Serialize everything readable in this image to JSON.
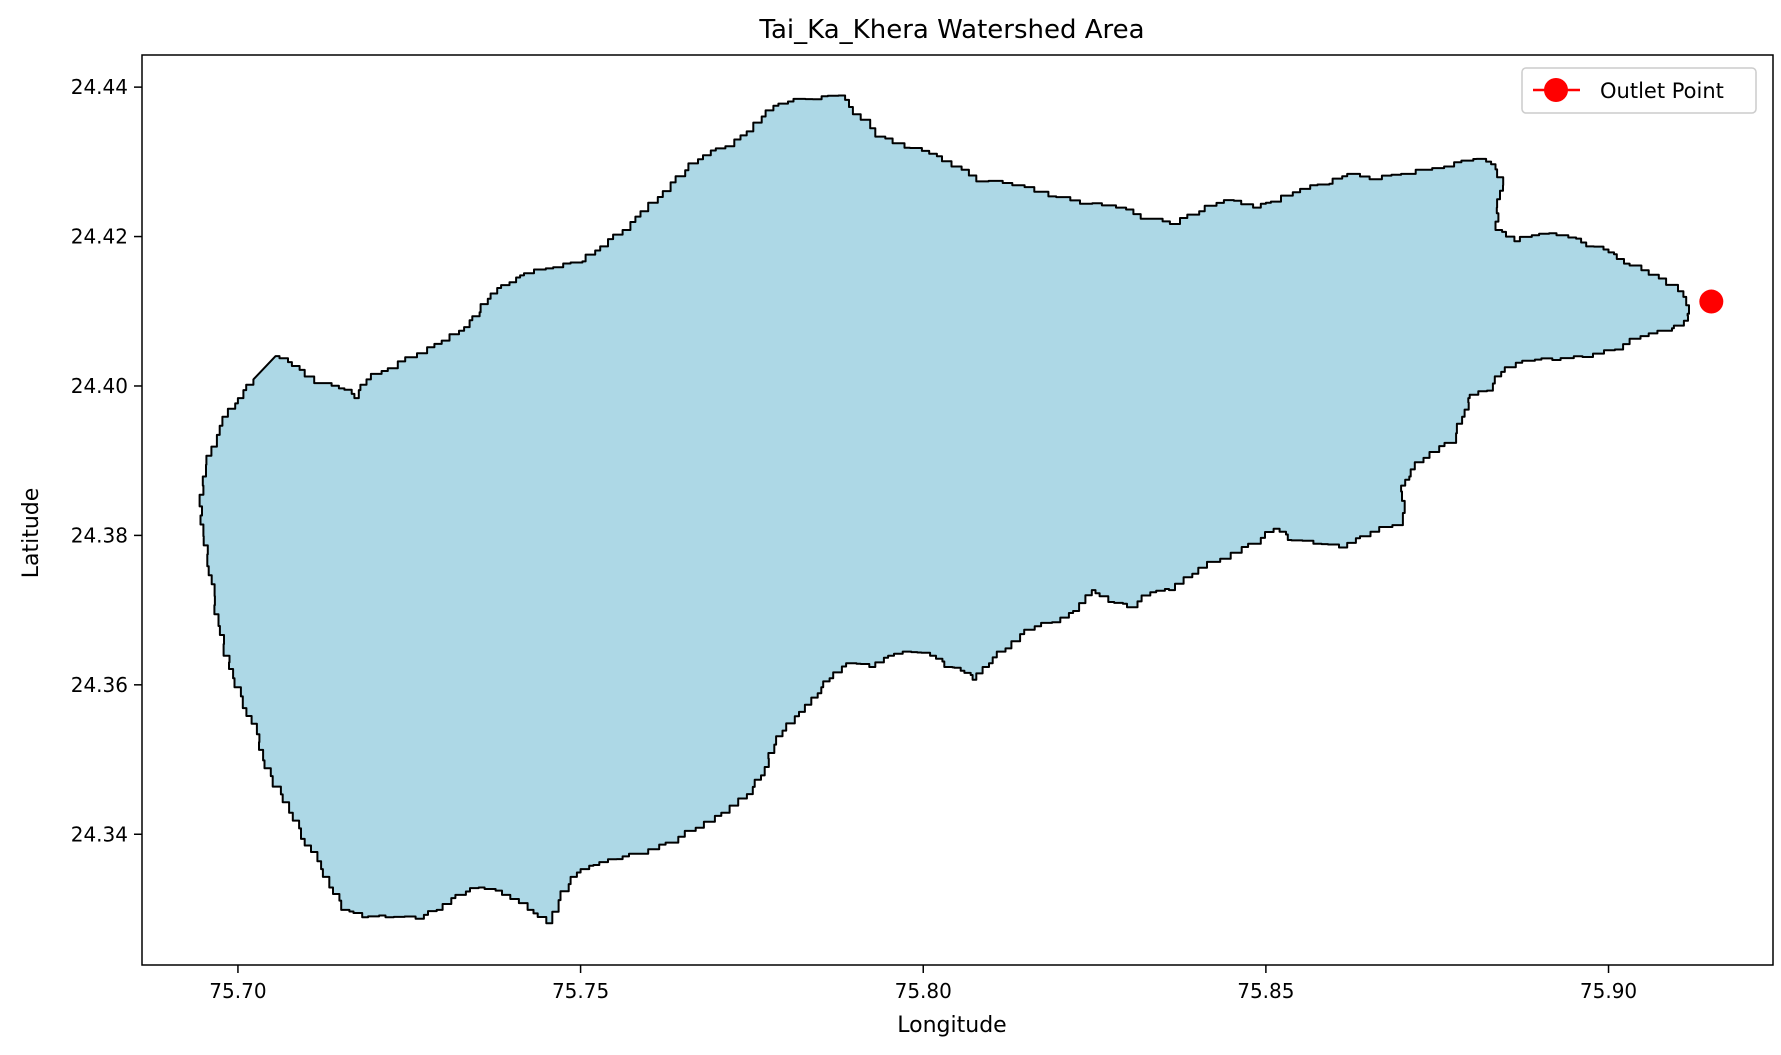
{
  "chart_data": {
    "type": "map",
    "title": "Tai_Ka_Khera Watershed Area",
    "xlabel": "Longitude",
    "ylabel": "Latitude",
    "xlim": [
      75.686,
      75.924
    ],
    "ylim": [
      24.3225,
      24.4443
    ],
    "x_ticks": [
      75.7,
      75.75,
      75.8,
      75.85,
      75.9
    ],
    "x_tick_labels": [
      "75.70",
      "75.75",
      "75.80",
      "75.85",
      "75.90"
    ],
    "y_ticks": [
      24.34,
      24.36,
      24.38,
      24.4,
      24.42,
      24.44
    ],
    "y_tick_labels": [
      "24.34",
      "24.36",
      "24.38",
      "24.40",
      "24.42",
      "24.44"
    ],
    "grid": false,
    "legend": {
      "position": "top-right",
      "entries": [
        "Outlet Point"
      ]
    },
    "watershed": {
      "fill": "#add8e6",
      "edge": "#000000",
      "boundary": [
        [
          75.7055,
          24.404
        ],
        [
          75.708,
          24.4028
        ],
        [
          75.711,
          24.4005
        ],
        [
          75.715,
          24.3998
        ],
        [
          75.717,
          24.3985
        ],
        [
          75.7185,
          24.401
        ],
        [
          75.722,
          24.4025
        ],
        [
          75.726,
          24.4045
        ],
        [
          75.73,
          24.4062
        ],
        [
          75.733,
          24.408
        ],
        [
          75.735,
          24.41
        ],
        [
          75.737,
          24.4125
        ],
        [
          75.7395,
          24.414
        ],
        [
          75.742,
          24.4152
        ],
        [
          75.746,
          24.416
        ],
        [
          75.75,
          24.4168
        ],
        [
          75.753,
          24.4188
        ],
        [
          75.756,
          24.421
        ],
        [
          75.759,
          24.4235
        ],
        [
          75.762,
          24.4262
        ],
        [
          75.765,
          24.429
        ],
        [
          75.768,
          24.431
        ],
        [
          75.771,
          24.4322
        ],
        [
          75.7745,
          24.4342
        ],
        [
          75.777,
          24.437
        ],
        [
          75.78,
          24.4382
        ],
        [
          75.784,
          24.4385
        ],
        [
          75.7875,
          24.439
        ],
        [
          75.79,
          24.4365
        ],
        [
          75.793,
          24.4335
        ],
        [
          75.797,
          24.432
        ],
        [
          75.801,
          24.4312
        ],
        [
          75.804,
          24.4295
        ],
        [
          75.808,
          24.4275
        ],
        [
          75.813,
          24.427
        ],
        [
          75.818,
          24.4255
        ],
        [
          75.823,
          24.4245
        ],
        [
          75.828,
          24.424
        ],
        [
          75.832,
          24.4225
        ],
        [
          75.836,
          24.4218
        ],
        [
          75.84,
          24.4235
        ],
        [
          75.844,
          24.425
        ],
        [
          75.848,
          24.424
        ],
        [
          75.851,
          24.4248
        ],
        [
          75.855,
          24.4265
        ],
        [
          75.859,
          24.4272
        ],
        [
          75.862,
          24.4285
        ],
        [
          75.865,
          24.4278
        ],
        [
          75.87,
          24.4285
        ],
        [
          75.876,
          24.4295
        ],
        [
          75.88,
          24.4305
        ],
        [
          75.883,
          24.4298
        ],
        [
          75.8845,
          24.427
        ],
        [
          75.884,
          24.424
        ],
        [
          75.8835,
          24.421
        ],
        [
          75.886,
          24.4195
        ],
        [
          75.89,
          24.4205
        ],
        [
          75.894,
          24.42
        ],
        [
          75.897,
          24.4188
        ],
        [
          75.9,
          24.418
        ],
        [
          75.902,
          24.4165
        ],
        [
          75.906,
          24.415
        ],
        [
          75.91,
          24.4128
        ],
        [
          75.912,
          24.4098
        ],
        [
          75.911,
          24.4082
        ],
        [
          75.909,
          24.4075
        ],
        [
          75.906,
          24.4068
        ],
        [
          75.902,
          24.405
        ],
        [
          75.898,
          24.404
        ],
        [
          75.893,
          24.4036
        ],
        [
          75.889,
          24.4035
        ],
        [
          75.885,
          24.402
        ],
        [
          75.883,
          24.3995
        ],
        [
          75.88,
          24.3985
        ],
        [
          75.879,
          24.396
        ],
        [
          75.8775,
          24.3925
        ],
        [
          75.874,
          24.3905
        ],
        [
          75.871,
          24.388
        ],
        [
          75.87,
          24.386
        ],
        [
          75.87,
          24.3815
        ],
        [
          75.865,
          24.38
        ],
        [
          75.862,
          24.3785
        ],
        [
          75.858,
          24.379
        ],
        [
          75.854,
          24.3795
        ],
        [
          75.852,
          24.381
        ],
        [
          75.849,
          24.379
        ],
        [
          75.845,
          24.377
        ],
        [
          75.84,
          24.375
        ],
        [
          75.837,
          24.3728
        ],
        [
          75.834,
          24.3725
        ],
        [
          75.831,
          24.3705
        ],
        [
          75.828,
          24.3712
        ],
        [
          75.825,
          24.3728
        ],
        [
          75.823,
          24.37
        ],
        [
          75.82,
          24.3685
        ],
        [
          75.816,
          24.3675
        ],
        [
          75.813,
          24.365
        ],
        [
          75.81,
          24.363
        ],
        [
          75.808,
          24.3608
        ],
        [
          75.806,
          24.362
        ],
        [
          75.804,
          24.3625
        ],
        [
          75.802,
          24.364
        ],
        [
          75.799,
          24.3645
        ],
        [
          75.796,
          24.364
        ],
        [
          75.793,
          24.3625
        ],
        [
          75.79,
          24.363
        ],
        [
          75.787,
          24.361
        ],
        [
          75.785,
          24.359
        ],
        [
          75.783,
          24.3565
        ],
        [
          75.78,
          24.354
        ],
        [
          75.778,
          24.351
        ],
        [
          75.777,
          24.348
        ],
        [
          75.775,
          24.3455
        ],
        [
          75.772,
          24.343
        ],
        [
          75.768,
          24.341
        ],
        [
          75.764,
          24.339
        ],
        [
          75.76,
          24.3375
        ],
        [
          75.756,
          24.3368
        ],
        [
          75.753,
          24.336
        ],
        [
          75.75,
          24.335
        ],
        [
          75.748,
          24.3325
        ],
        [
          75.746,
          24.3282
        ],
        [
          75.743,
          24.33
        ],
        [
          75.74,
          24.332
        ],
        [
          75.736,
          24.333
        ],
        [
          75.733,
          24.332
        ],
        [
          75.73,
          24.33
        ],
        [
          75.727,
          24.3288
        ],
        [
          75.723,
          24.329
        ],
        [
          75.719,
          24.329
        ],
        [
          75.716,
          24.33
        ],
        [
          75.714,
          24.333
        ],
        [
          75.712,
          24.3365
        ],
        [
          75.71,
          24.3395
        ],
        [
          75.708,
          24.343
        ],
        [
          75.706,
          24.3465
        ],
        [
          75.704,
          24.35
        ],
        [
          75.703,
          24.3535
        ],
        [
          75.7015,
          24.357
        ],
        [
          75.6995,
          24.361
        ],
        [
          75.6985,
          24.364
        ],
        [
          75.6975,
          24.368
        ],
        [
          75.6965,
          24.372
        ],
        [
          75.696,
          24.376
        ],
        [
          75.695,
          24.38
        ],
        [
          75.6945,
          24.384
        ],
        [
          75.695,
          24.388
        ],
        [
          75.696,
          24.392
        ],
        [
          75.698,
          24.396
        ],
        [
          75.7,
          24.3985
        ],
        [
          75.702,
          24.401
        ]
      ]
    },
    "outlet_point": {
      "label": "Outlet Point",
      "x": 75.915,
      "y": 24.4113,
      "color": "#ff0000"
    }
  }
}
